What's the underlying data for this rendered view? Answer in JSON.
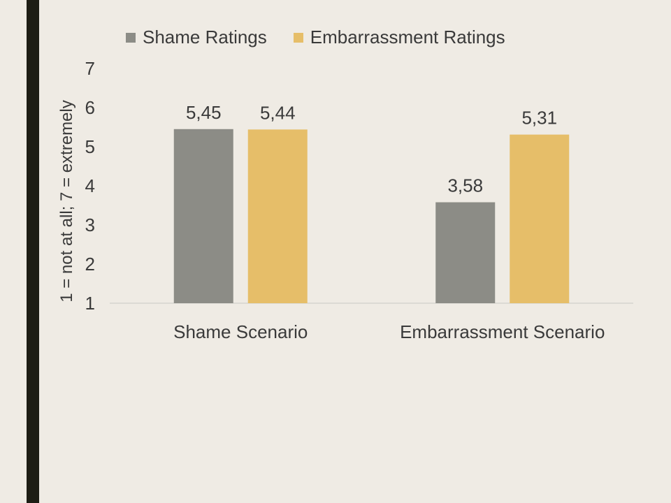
{
  "chart_data": {
    "type": "bar",
    "categories": [
      "Shame Scenario",
      "Embarrassment Scenario"
    ],
    "series": [
      {
        "name": "Shame Ratings",
        "values": [
          5.45,
          3.58
        ],
        "labels": [
          "5,45",
          "3,58"
        ]
      },
      {
        "name": "Embarrassment Ratings",
        "values": [
          5.44,
          5.31
        ],
        "labels": [
          "5,44",
          "5,31"
        ]
      }
    ],
    "ylabel": "1 = not at all; 7 = extremely",
    "ylim": [
      1,
      7
    ],
    "yticks": [
      "1",
      "2",
      "3",
      "4",
      "5",
      "6",
      "7"
    ],
    "grid": false,
    "legend": "top",
    "colors": [
      "#8c8c86",
      "#e6be69"
    ]
  },
  "theme": {
    "accent_bar": "#1d1d14",
    "background": "#efebe4",
    "text": "#3a3a3a",
    "axis": "#d6d4ce"
  }
}
